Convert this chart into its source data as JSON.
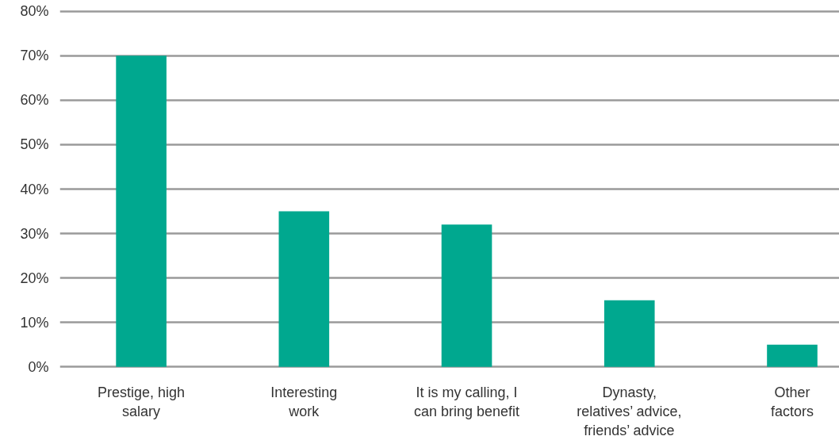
{
  "chart_data": {
    "type": "bar",
    "categories": [
      "Prestige, high\nsalary",
      "Interesting\nwork",
      "It is my calling, I\ncan bring benefit",
      "Dynasty,\nrelatives’ advice,\nfriends’ advice",
      "Other\nfactors"
    ],
    "values": [
      70,
      35,
      32,
      15,
      5
    ],
    "color": "#00a88f",
    "ylim": [
      0,
      80
    ],
    "yticks": [
      {
        "value": 0,
        "label": "0%"
      },
      {
        "value": 10,
        "label": "10%"
      },
      {
        "value": 20,
        "label": "20%"
      },
      {
        "value": 30,
        "label": "30%"
      },
      {
        "value": 40,
        "label": "40%"
      },
      {
        "value": 50,
        "label": "50%"
      },
      {
        "value": 60,
        "label": "60%"
      },
      {
        "value": 70,
        "label": "70%"
      },
      {
        "value": 80,
        "label": "80%"
      }
    ],
    "grid": "y"
  }
}
